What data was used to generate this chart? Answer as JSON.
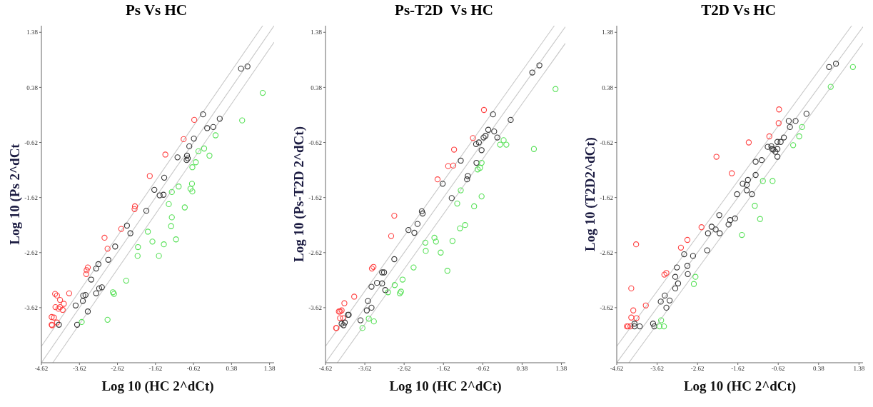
{
  "chart_data": [
    {
      "type": "scatter",
      "title": "Ps Vs HC",
      "xlabel": "Log 10 (HC 2^dCt)",
      "ylabel": "Log 10 (Ps 2^dCt",
      "xlim": [
        -4.62,
        1.5
      ],
      "ylim": [
        -4.62,
        1.5
      ],
      "xticks": [
        -4.62,
        -3.62,
        -2.62,
        -1.62,
        -0.62,
        0.38,
        1.38
      ],
      "yticks": [
        -3.62,
        -2.62,
        -1.62,
        -0.62,
        0.38,
        1.38
      ],
      "marker": "circle",
      "series": [
        {
          "color": "#ff4040",
          "x": [
            -0.6,
            -0.88,
            -1.36,
            -1.77,
            -2.16,
            -2.17,
            -2.52,
            -2.96,
            -2.88,
            -3.4,
            -3.43,
            -3.44,
            -3.89,
            -4.26,
            -4.21,
            -4.13,
            -4.03,
            -4.25,
            -4.17,
            -4.13,
            -4.06,
            -4.35,
            -4.29,
            -4.21,
            -4.35,
            -4.34
          ],
          "values": [
            -0.21,
            -0.56,
            -0.84,
            -1.23,
            -1.78,
            -1.83,
            -2.19,
            -2.35,
            -2.55,
            -2.89,
            -2.94,
            -3.01,
            -3.36,
            -3.37,
            -3.4,
            -3.48,
            -3.55,
            -3.61,
            -3.64,
            -3.61,
            -3.66,
            -3.79,
            -3.8,
            -3.89,
            -3.93,
            -3.94
          ]
        },
        {
          "color": "#333333",
          "x": [
            0.63,
            0.8,
            -0.37,
            0.07,
            -0.26,
            -0.1,
            -0.61,
            -0.73,
            -1.04,
            -0.79,
            -0.8,
            -0.77,
            -1.39,
            -1.65,
            -1.51,
            -1.41,
            -1.86,
            -2.37,
            -2.28,
            -2.68,
            -2.86,
            -3.12,
            -3.18,
            -3.31,
            -3.03,
            -3.1,
            -3.18,
            -3.46,
            -3.52,
            -3.53,
            -3.72,
            -3.4,
            -3.68,
            -4.16
          ],
          "values": [
            0.72,
            0.76,
            -0.11,
            -0.19,
            -0.36,
            -0.34,
            -0.55,
            -0.69,
            -0.89,
            -0.86,
            -0.94,
            -0.91,
            -1.26,
            -1.48,
            -1.58,
            -1.57,
            -1.86,
            -2.13,
            -2.27,
            -2.51,
            -2.75,
            -2.83,
            -2.91,
            -3.11,
            -3.25,
            -3.27,
            -3.36,
            -3.39,
            -3.4,
            -3.5,
            -3.58,
            -3.69,
            -3.93,
            -3.93
          ]
        },
        {
          "color": "#55e055",
          "x": [
            1.2,
            0.66,
            -0.04,
            -0.49,
            -0.34,
            -0.2,
            -0.56,
            -0.65,
            -0.66,
            -0.7,
            -0.65,
            -1.01,
            -1.19,
            -1.27,
            -0.85,
            -1.19,
            -1.21,
            -1.08,
            -1.82,
            -1.7,
            -1.4,
            -2.08,
            -2.09,
            -1.53,
            -2.39,
            -2.74,
            -2.71,
            -2.88,
            -3.56
          ],
          "values": [
            0.28,
            -0.22,
            -0.49,
            -0.78,
            -0.73,
            -0.86,
            -0.98,
            -1.07,
            -1.37,
            -1.46,
            -1.51,
            -1.42,
            -1.52,
            -1.74,
            -1.8,
            -1.98,
            -2.14,
            -2.38,
            -2.24,
            -2.42,
            -2.47,
            -2.52,
            -2.68,
            -2.68,
            -3.13,
            -3.34,
            -3.37,
            -3.84,
            -3.88
          ]
        },
        {
          "type": "line",
          "marker": "none",
          "color": "#c8c8c8",
          "x": [
            -4.62,
            1.2
          ],
          "values": [
            -4.32,
            1.5
          ]
        },
        {
          "type": "line",
          "marker": "none",
          "color": "#c8c8c8",
          "x": [
            -4.62,
            1.5
          ],
          "values": [
            -4.62,
            1.5
          ]
        },
        {
          "type": "line",
          "marker": "none",
          "color": "#c8c8c8",
          "x": [
            -4.32,
            1.5
          ],
          "values": [
            -4.62,
            1.2
          ]
        }
      ]
    },
    {
      "type": "scatter",
      "title": "Ps-T2D  Vs HC",
      "xlabel": "Log 10 (HC 2^dCt)",
      "ylabel": "Log 10 (Ps-T2D 2^dCt)",
      "xlim": [
        -4.62,
        1.48
      ],
      "ylim": [
        -4.62,
        1.5
      ],
      "xticks": [
        -4.62,
        -3.62,
        -2.62,
        -1.62,
        -0.62,
        0.38,
        1.38
      ],
      "yticks": [
        -3.62,
        -2.62,
        -1.62,
        -0.62,
        0.38,
        1.38
      ],
      "marker": "circle",
      "series": [
        {
          "color": "#ff4040",
          "x": [
            -0.59,
            -0.87,
            -1.35,
            -1.5,
            -1.37,
            -1.77,
            -2.87,
            -2.95,
            -3.44,
            -3.4,
            -3.89,
            -4.14,
            -4.28,
            -4.25,
            -4.21,
            -4.25,
            -4.17,
            -4.35,
            -4.34
          ],
          "values": [
            -0.03,
            -0.54,
            -0.75,
            -1.05,
            -1.04,
            -1.29,
            -1.95,
            -2.32,
            -2.91,
            -2.88,
            -3.42,
            -3.54,
            -3.69,
            -3.69,
            -3.67,
            -3.81,
            -3.81,
            -3.99,
            -3.99
          ]
        },
        {
          "color": "#333333",
          "x": [
            0.82,
            0.64,
            -0.36,
            0.09,
            -0.48,
            -0.33,
            -0.25,
            -0.6,
            -0.55,
            -0.79,
            -0.72,
            -0.65,
            -1.18,
            -0.78,
            -1.0,
            -1.02,
            -1.64,
            -1.41,
            -2.17,
            -2.15,
            -2.28,
            -2.51,
            -2.36,
            -2.87,
            -3.18,
            -3.13,
            -3.31,
            -3.18,
            -3.45,
            -3.1,
            -3.54,
            -3.45,
            -3.57,
            -4.05,
            -4.03,
            -3.73,
            -4.21,
            -4.16,
            -4.13
          ],
          "values": [
            0.78,
            0.65,
            -0.11,
            -0.21,
            -0.39,
            -0.42,
            -0.53,
            -0.53,
            -0.5,
            -0.65,
            -0.62,
            -0.76,
            -0.95,
            -0.99,
            -1.23,
            -1.29,
            -1.37,
            -1.63,
            -1.87,
            -1.91,
            -2.1,
            -2.21,
            -2.26,
            -2.74,
            -2.98,
            -2.98,
            -3.17,
            -3.18,
            -3.24,
            -3.3,
            -3.5,
            -3.62,
            -3.67,
            -3.75,
            -3.75,
            -3.85,
            -3.91,
            -3.94,
            -3.89
          ]
        },
        {
          "color": "#55e055",
          "x": [
            1.23,
            0.68,
            -0.18,
            -0.09,
            -0.02,
            -0.65,
            -0.75,
            -0.69,
            -1.18,
            -0.65,
            -1.27,
            -0.84,
            -1.07,
            -1.2,
            -1.85,
            -1.81,
            -2.08,
            -2.07,
            -1.39,
            -1.69,
            -1.52,
            -2.38,
            -2.66,
            -2.86,
            -3.03,
            -2.73,
            -2.7,
            -3.52,
            -3.39,
            -3.68
          ],
          "values": [
            0.35,
            -0.74,
            -0.66,
            -0.58,
            -0.66,
            -0.99,
            -1.11,
            -1.08,
            -1.49,
            -1.6,
            -1.73,
            -1.78,
            -2.12,
            -2.18,
            -2.35,
            -2.42,
            -2.44,
            -2.59,
            -2.41,
            -2.62,
            -2.95,
            -2.89,
            -3.11,
            -3.21,
            -3.34,
            -3.36,
            -3.33,
            -3.82,
            -3.87,
            -3.99
          ]
        },
        {
          "type": "line",
          "marker": "none",
          "color": "#c8c8c8",
          "x": [
            -4.62,
            1.2
          ],
          "values": [
            -4.32,
            1.5
          ]
        },
        {
          "type": "line",
          "marker": "none",
          "color": "#c8c8c8",
          "x": [
            -4.62,
            1.48
          ],
          "values": [
            -4.62,
            1.48
          ]
        },
        {
          "type": "line",
          "marker": "none",
          "color": "#c8c8c8",
          "x": [
            -4.32,
            1.48
          ],
          "values": [
            -4.62,
            1.18
          ]
        }
      ]
    },
    {
      "type": "scatter",
      "title": "T2D Vs HC",
      "xlabel": "Log 10 (HC 2^dCt)",
      "ylabel": "Log 10 (T2D2^dCt)",
      "xlim": [
        -4.62,
        1.48
      ],
      "ylim": [
        -4.62,
        1.5
      ],
      "xticks": [
        -4.62,
        -3.62,
        -2.62,
        -1.62,
        -0.62,
        0.38,
        1.38
      ],
      "yticks": [
        -3.62,
        -2.62,
        -1.62,
        -0.62,
        0.38,
        1.38
      ],
      "marker": "circle",
      "series": [
        {
          "color": "#ff4040",
          "x": [
            -0.6,
            -0.61,
            -0.84,
            -1.35,
            -2.15,
            -1.77,
            -2.52,
            -2.87,
            -3.03,
            -4.14,
            -3.44,
            -3.39,
            -4.26,
            -3.9,
            -4.21,
            -4.26,
            -4.13,
            -4.37,
            -4.34,
            -4.28
          ],
          "values": [
            -0.02,
            -0.27,
            -0.51,
            -0.62,
            -0.88,
            -1.18,
            -2.16,
            -2.39,
            -2.53,
            -2.47,
            -3.02,
            -2.99,
            -3.27,
            -3.58,
            -3.67,
            -3.8,
            -3.81,
            -3.96,
            -3.96,
            -3.96
          ]
        },
        {
          "color": "#333333",
          "x": [
            0.81,
            0.64,
            0.08,
            -0.19,
            -0.36,
            -0.33,
            -0.48,
            -0.64,
            -0.56,
            -0.88,
            -0.79,
            -0.77,
            -0.74,
            -0.69,
            -0.64,
            -0.64,
            -1.03,
            -1.18,
            -1.18,
            -1.37,
            -1.5,
            -1.4,
            -1.4,
            -1.27,
            -1.64,
            -2.08,
            -1.69,
            -1.81,
            -1.85,
            -2.27,
            -2.36,
            -2.17,
            -2.07,
            -2.38,
            -2.95,
            -2.73,
            -2.87,
            -3.13,
            -2.86,
            -3.17,
            -3.1,
            -3.17,
            -3.43,
            -3.31,
            -3.53,
            -3.39,
            -3.72,
            -3.69,
            -4.18,
            -4.18,
            -4.05
          ],
          "values": [
            0.81,
            0.75,
            -0.1,
            -0.23,
            -0.23,
            -0.34,
            -0.53,
            -0.61,
            -0.61,
            -0.7,
            -0.69,
            -0.74,
            -0.75,
            -0.79,
            -0.74,
            -0.88,
            -0.94,
            -0.97,
            -1.21,
            -1.3,
            -1.37,
            -1.39,
            -1.49,
            -1.56,
            -1.56,
            -1.94,
            -2.0,
            -2.03,
            -2.11,
            -2.15,
            -2.27,
            -2.2,
            -2.27,
            -2.58,
            -2.65,
            -2.68,
            -2.86,
            -2.89,
            -3.01,
            -3.06,
            -3.18,
            -3.27,
            -3.4,
            -3.49,
            -3.51,
            -3.62,
            -3.91,
            -3.96,
            -3.91,
            -3.96,
            -3.96
          ]
        },
        {
          "color": "#55e055",
          "x": [
            1.23,
            0.68,
            -0.03,
            -0.1,
            -0.25,
            -1.0,
            -0.76,
            -1.2,
            -1.07,
            -1.52,
            -2.67,
            -2.71,
            -3.52,
            -3.56,
            -3.45
          ],
          "values": [
            0.75,
            0.39,
            -0.34,
            -0.51,
            -0.67,
            -1.32,
            -1.32,
            -1.77,
            -2.01,
            -2.3,
            -3.06,
            -3.19,
            -3.85,
            -3.96,
            -3.96
          ]
        },
        {
          "type": "line",
          "marker": "none",
          "color": "#c8c8c8",
          "x": [
            -4.62,
            1.2
          ],
          "values": [
            -4.32,
            1.5
          ]
        },
        {
          "type": "line",
          "marker": "none",
          "color": "#c8c8c8",
          "x": [
            -4.62,
            1.48
          ],
          "values": [
            -4.62,
            1.48
          ]
        },
        {
          "type": "line",
          "marker": "none",
          "color": "#c8c8c8",
          "x": [
            -4.32,
            1.48
          ],
          "values": [
            -4.62,
            1.18
          ]
        }
      ]
    }
  ]
}
